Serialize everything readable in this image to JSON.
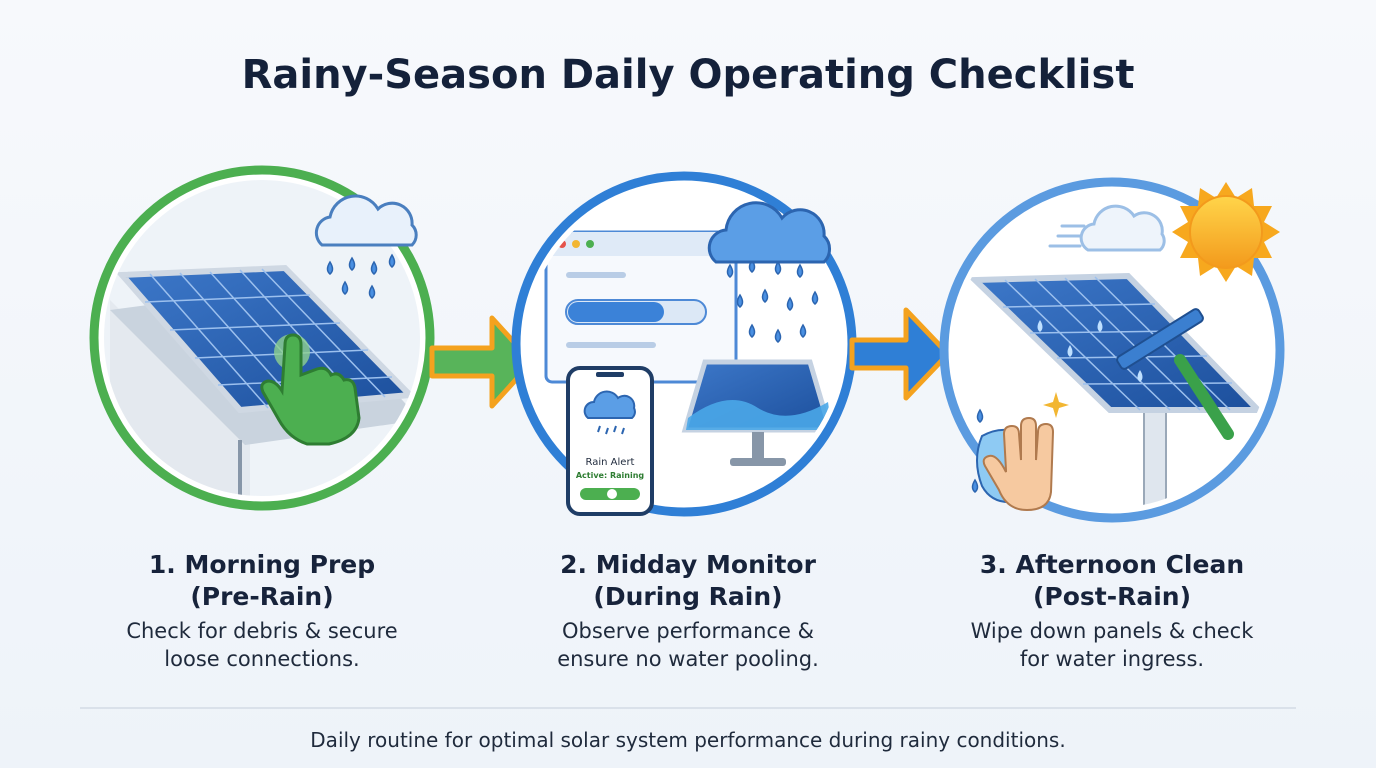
{
  "title": "Rainy-Season Daily Operating Checklist",
  "steps": [
    {
      "title": [
        "1. Morning Prep",
        "(Pre-Rain)"
      ],
      "description": [
        "Check for debris & secure",
        "loose connections."
      ]
    },
    {
      "title": [
        "2. Midday Monitor",
        "(During Rain)"
      ],
      "description": [
        "Observe performance &",
        "ensure no water pooling."
      ]
    },
    {
      "title": [
        "3. Afternoon Clean",
        "(Post-Rain)"
      ],
      "description": [
        "Wipe down panels & check",
        "for water ingress."
      ]
    }
  ],
  "phone": {
    "title": "Rain Alert",
    "status": "Active: Raining"
  },
  "footer": "Daily routine for optimal solar system performance during rainy conditions."
}
